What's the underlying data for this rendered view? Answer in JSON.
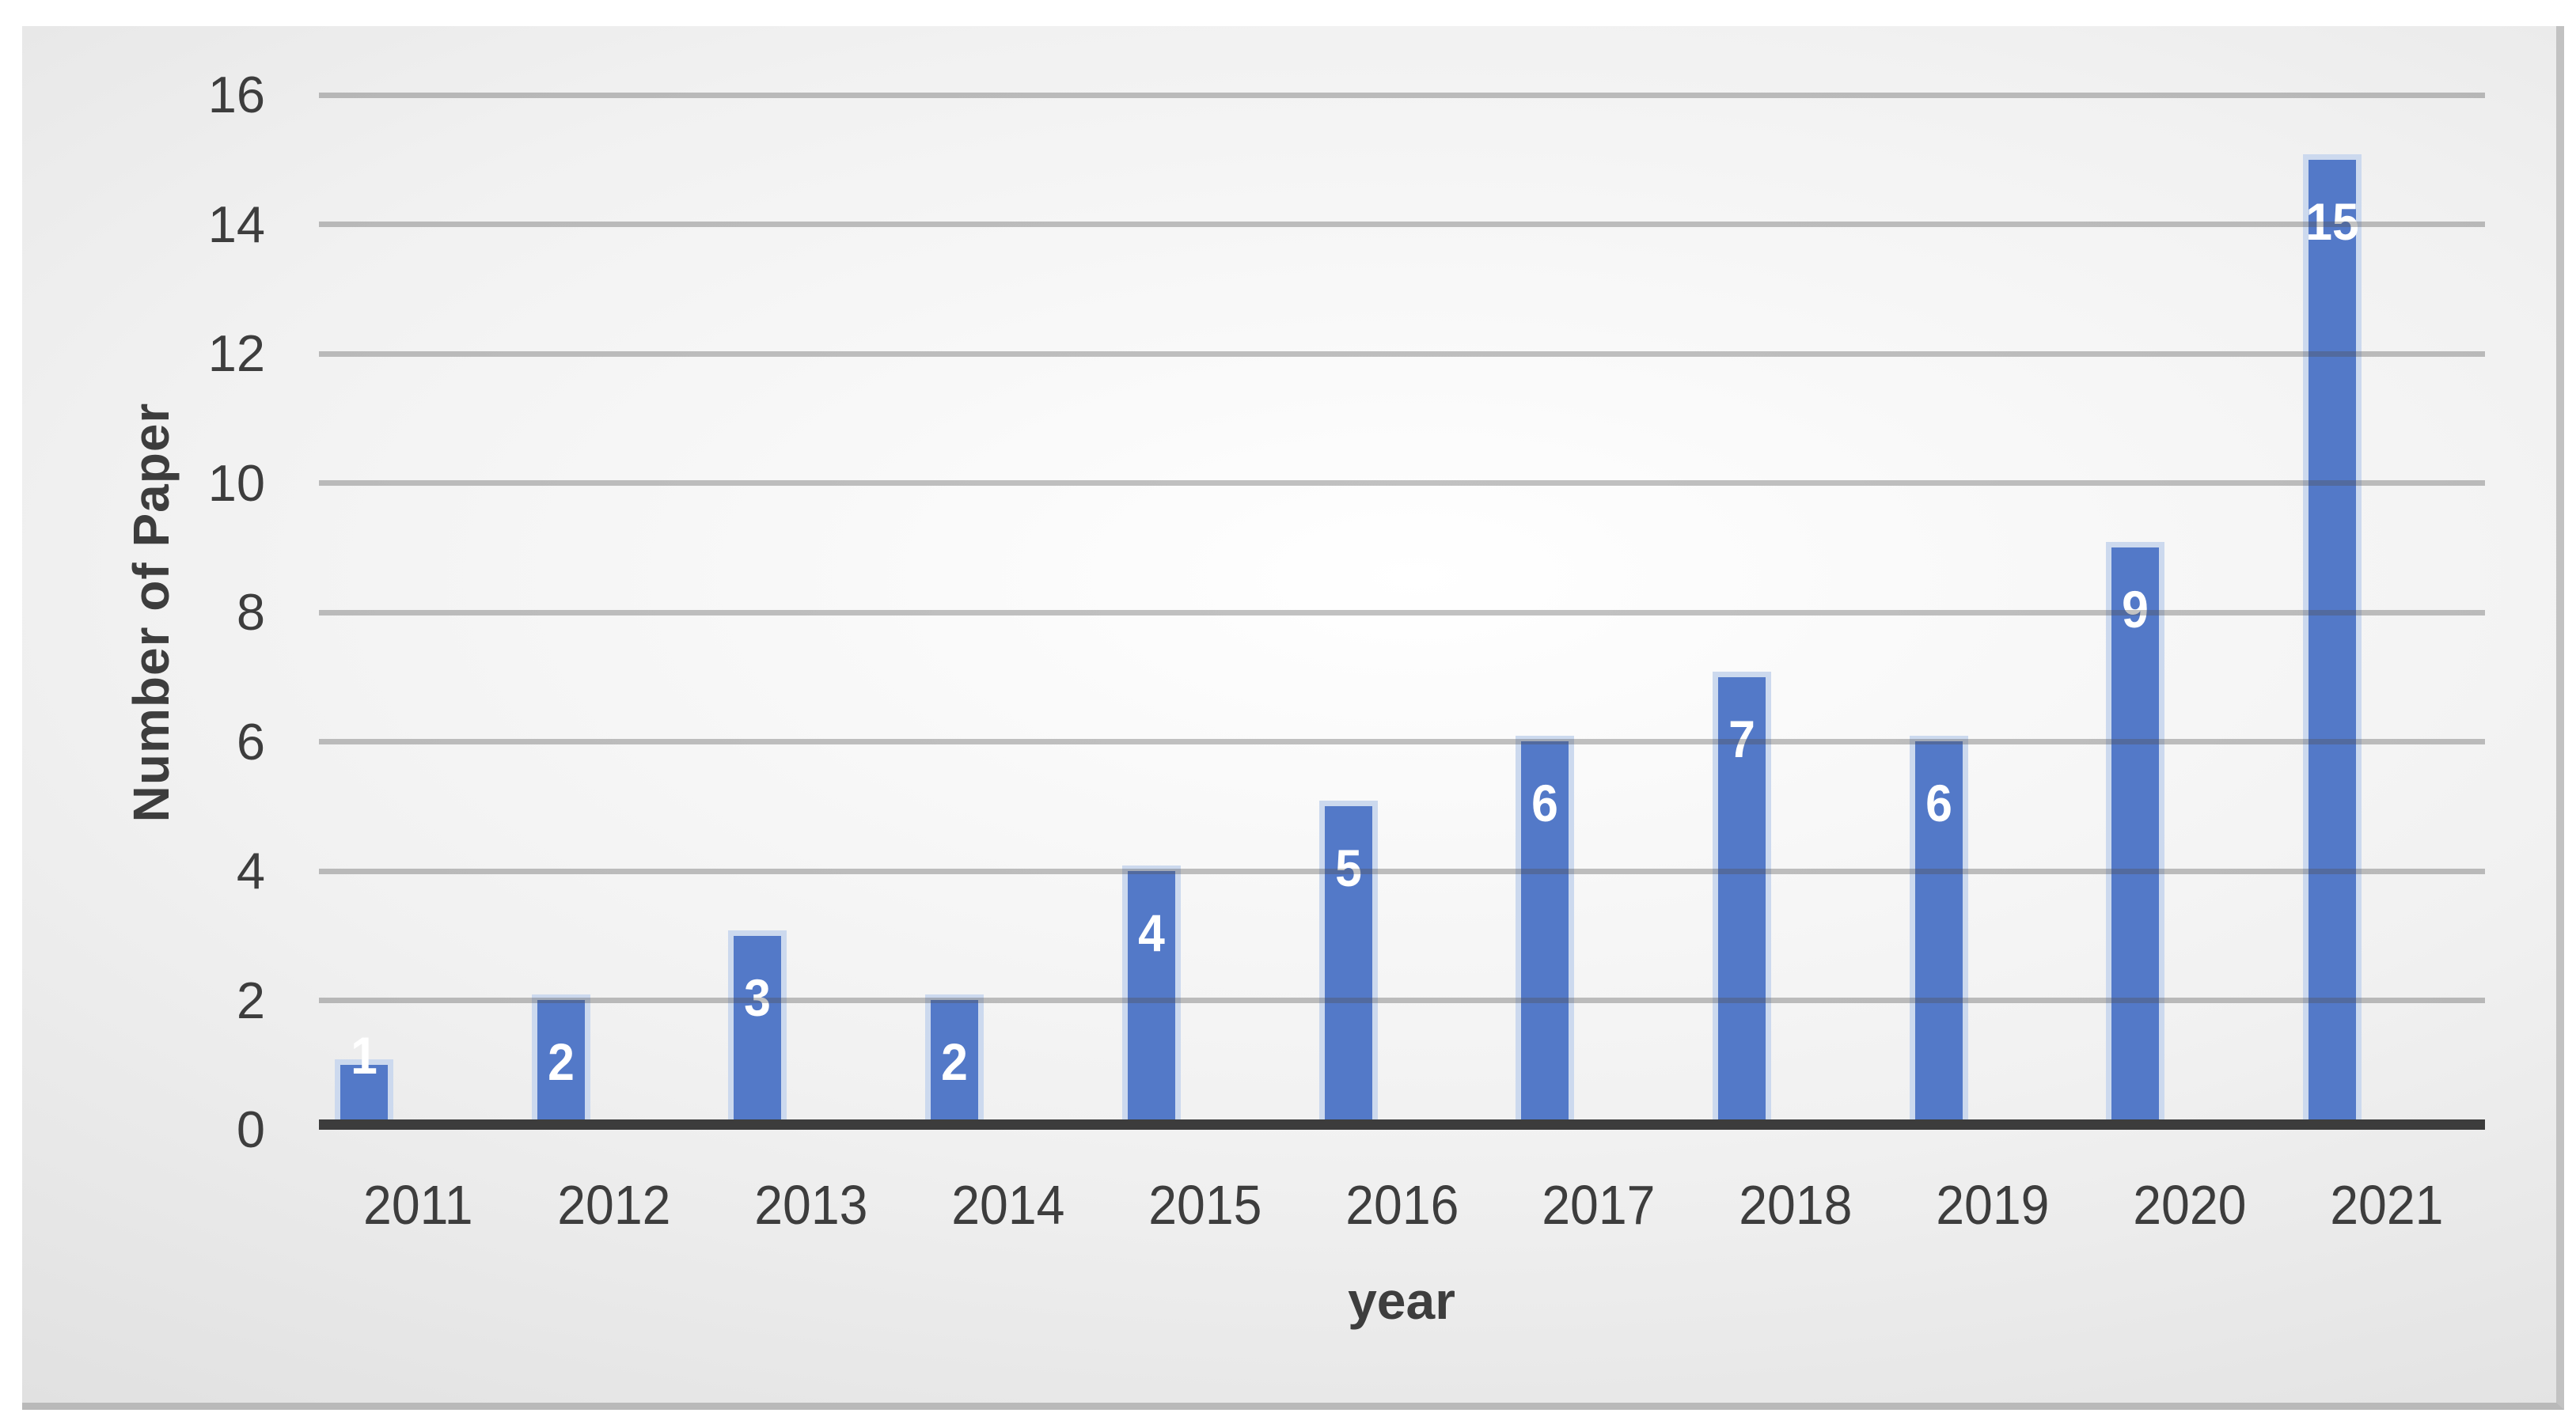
{
  "chart_data": {
    "type": "bar",
    "title": "",
    "xlabel": "year",
    "ylabel": "Number of Paper",
    "categories": [
      "2011",
      "2012",
      "2013",
      "2014",
      "2015",
      "2016",
      "2017",
      "2018",
      "2019",
      "2020",
      "2021"
    ],
    "values": [
      1,
      2,
      3,
      2,
      4,
      5,
      6,
      7,
      6,
      9,
      15
    ],
    "data_labels": [
      "1",
      "2",
      "3",
      "2",
      "4",
      "5",
      "6",
      "7",
      "6",
      "9",
      "15"
    ],
    "ylim": [
      0,
      16
    ],
    "yticks": [
      0,
      2,
      4,
      6,
      8,
      10,
      12,
      14,
      16
    ],
    "grid": true,
    "legend": "none",
    "colors": {
      "bar_fill": "#5379c8",
      "bar_border": "#ccd9ee",
      "bar_label_text": "#ffffff",
      "axis_text": "#3d3d3d",
      "axis_line": "#3c3c3c",
      "gridline": "rgba(80,80,80,0.35)",
      "panel_edge": "#b9b9b9"
    }
  }
}
